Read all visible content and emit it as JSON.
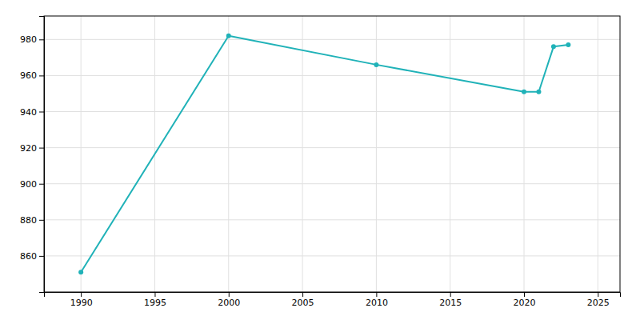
{
  "chart_data": {
    "type": "line",
    "x": [
      1990,
      2000,
      2010,
      2020,
      2021,
      2022,
      2023
    ],
    "values": [
      851,
      982,
      966,
      951,
      951,
      976,
      977
    ],
    "color": "#20b2b8",
    "marker": "circle",
    "xlim": [
      1987.5,
      2026.5
    ],
    "ylim": [
      840,
      993
    ],
    "xticks": [
      1990,
      1995,
      2000,
      2005,
      2010,
      2015,
      2020,
      2025
    ],
    "yticks": [
      860,
      880,
      900,
      920,
      940,
      960,
      980
    ],
    "grid": true
  }
}
